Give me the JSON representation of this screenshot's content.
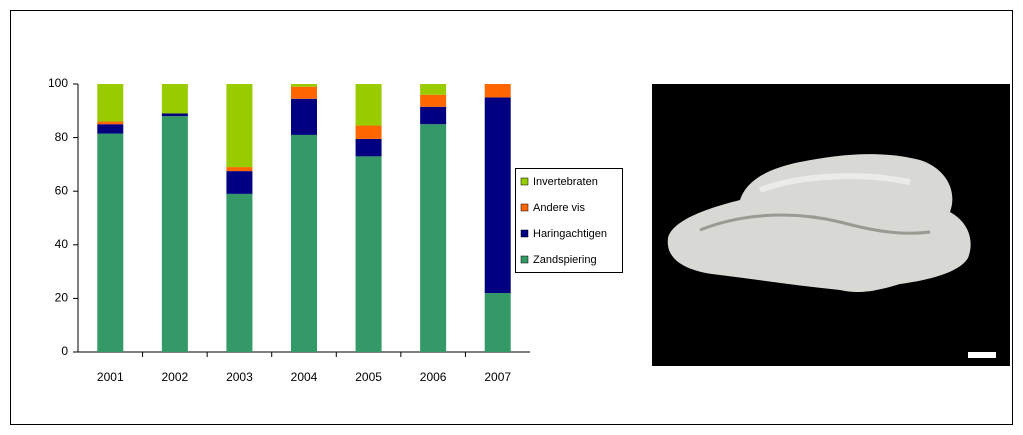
{
  "chart_data": {
    "type": "bar",
    "stacked": true,
    "categories": [
      "2001",
      "2002",
      "2003",
      "2004",
      "2005",
      "2006",
      "2007"
    ],
    "series": [
      {
        "name": "Zandspiering",
        "color": "#339966",
        "values": [
          81.5,
          88,
          59,
          81,
          73,
          85,
          22
        ]
      },
      {
        "name": "Haringachtigen",
        "color": "#000080",
        "values": [
          3.5,
          1,
          8.5,
          13.5,
          6.5,
          6.5,
          73
        ]
      },
      {
        "name": "Andere vis",
        "color": "#ff6600",
        "values": [
          1,
          0,
          1.5,
          4.5,
          5,
          4.5,
          5
        ]
      },
      {
        "name": "Invertebraten",
        "color": "#99cc00",
        "values": [
          14,
          11,
          31,
          1,
          15.5,
          4,
          0
        ]
      }
    ],
    "ylim": [
      0,
      100
    ],
    "yticks": [
      0,
      20,
      40,
      60,
      80,
      100
    ],
    "grid": false,
    "legend": "right"
  }
}
